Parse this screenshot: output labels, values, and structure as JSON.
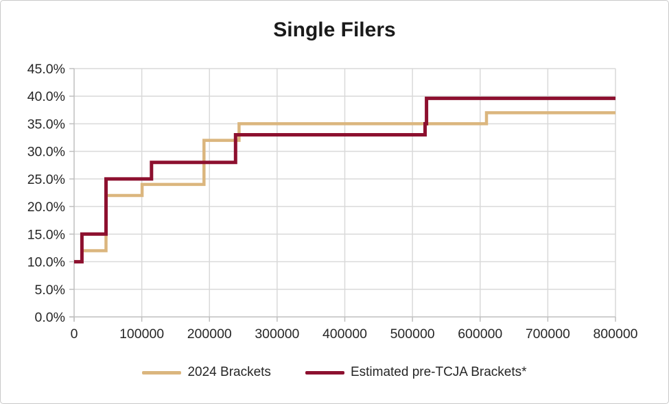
{
  "title": "Single Filers",
  "legend": {
    "items": [
      {
        "label": "2024 Brackets",
        "color": "#DBB67E"
      },
      {
        "label": "Estimated pre-TCJA Brackets*",
        "color": "#8D102F"
      }
    ]
  },
  "colors": {
    "background": "#FFFFFF",
    "frame_border": "#C9C9C9",
    "gridline": "#D9D9D9",
    "axis_line": "#BFBFBF",
    "tick": "#BFBFBF",
    "label_text": "#262626",
    "series_2024": "#DBB67E",
    "series_pre_tcja": "#8D102F"
  },
  "chart_data": {
    "type": "line",
    "subtype": "step",
    "title": "Single Filers",
    "xlabel": "",
    "ylabel": "",
    "grid": true,
    "legend_position": "bottom",
    "xlim": [
      0,
      800000
    ],
    "ylim": [
      0,
      45
    ],
    "x_tick_values": [
      0,
      100000,
      200000,
      300000,
      400000,
      500000,
      600000,
      700000,
      800000
    ],
    "x_tick_labels": [
      "0",
      "100000",
      "200000",
      "300000",
      "400000",
      "500000",
      "600000",
      "700000",
      "800000"
    ],
    "y_tick_values": [
      0,
      5,
      10,
      15,
      20,
      25,
      30,
      35,
      40,
      45
    ],
    "y_tick_labels": [
      "0.0%",
      "5.0%",
      "10.0%",
      "15.0%",
      "20.0%",
      "25.0%",
      "30.0%",
      "35.0%",
      "40.0%",
      "45.0%"
    ],
    "series": [
      {
        "name": "2024 Brackets",
        "color": "#DBB67E",
        "stroke_width": 4.5,
        "points": [
          [
            0,
            10
          ],
          [
            11600,
            10
          ],
          [
            11600,
            12
          ],
          [
            47150,
            12
          ],
          [
            47150,
            22
          ],
          [
            100525,
            22
          ],
          [
            100525,
            24
          ],
          [
            191950,
            24
          ],
          [
            191950,
            32
          ],
          [
            243725,
            32
          ],
          [
            243725,
            35
          ],
          [
            609350,
            35
          ],
          [
            609350,
            37
          ],
          [
            800000,
            37
          ]
        ]
      },
      {
        "name": "Estimated pre-TCJA Brackets*",
        "color": "#8D102F",
        "stroke_width": 5,
        "points": [
          [
            0,
            10
          ],
          [
            11600,
            10
          ],
          [
            11600,
            15
          ],
          [
            47150,
            15
          ],
          [
            47150,
            25
          ],
          [
            114400,
            25
          ],
          [
            114400,
            28
          ],
          [
            238550,
            28
          ],
          [
            238550,
            33
          ],
          [
            518650,
            33
          ],
          [
            518650,
            35
          ],
          [
            520800,
            35
          ],
          [
            520800,
            39.6
          ],
          [
            800000,
            39.6
          ]
        ]
      }
    ]
  }
}
